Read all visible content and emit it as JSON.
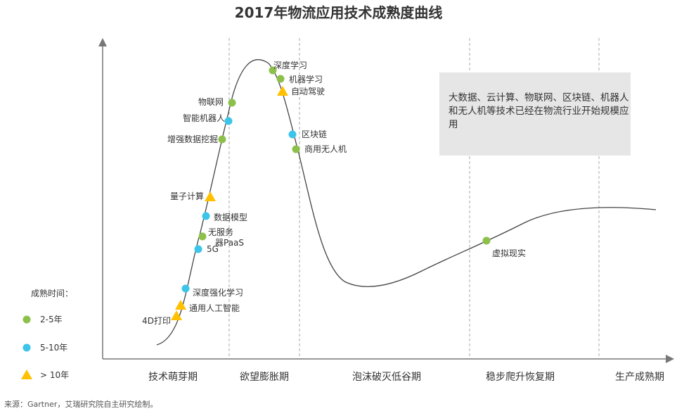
{
  "chart_data": {
    "type": "scatter",
    "title": "2017年物流应用技术成熟度曲线",
    "xlabel": "",
    "ylabel": "",
    "grid": false,
    "phases": [
      "技术萌芽期",
      "欲望膨胀期",
      "泡沫破灭低谷期",
      "稳步爬升恢复期",
      "生产成熟期"
    ],
    "legend": {
      "title": "成熟时间：",
      "placement": "left",
      "entries": [
        {
          "label": "2-5年",
          "marker": "circle",
          "color": "#8cc04b"
        },
        {
          "label": "5-10年",
          "marker": "circle",
          "color": "#3cc4ea"
        },
        {
          "label": "> 10年",
          "marker": "triangle",
          "color": "#ffc000"
        }
      ]
    },
    "points": [
      {
        "label": "深度学习",
        "group": "2-5年"
      },
      {
        "label": "机器学习",
        "group": "2-5年"
      },
      {
        "label": "自动驾驶",
        "group": "> 10年"
      },
      {
        "label": "物联网",
        "group": "2-5年"
      },
      {
        "label": "智能机器人",
        "group": "5-10年"
      },
      {
        "label": "增强数据挖掘",
        "group": "2-5年"
      },
      {
        "label": "区块链",
        "group": "5-10年"
      },
      {
        "label": "商用无人机",
        "group": "2-5年"
      },
      {
        "label": "量子计算",
        "group": "> 10年"
      },
      {
        "label": "数据模型",
        "group": "5-10年"
      },
      {
        "label": "无服务器PaaS",
        "group": "2-5年"
      },
      {
        "label": "5G",
        "group": "5-10年"
      },
      {
        "label": "深度强化学习",
        "group": "5-10年"
      },
      {
        "label": "通用人工智能",
        "group": "> 10年"
      },
      {
        "label": "4D打印",
        "group": "> 10年"
      },
      {
        "label": "虚拟现实",
        "group": "2-5年"
      }
    ],
    "annotation": "大数据、云计算、物联网、区块链、机器人和无人机等技术已经在物流行业开始规模应用"
  },
  "source": "来源：Gartner，艾瑞研究院自主研究绘制。",
  "colors": {
    "green": "#8cc04b",
    "blue": "#3cc4ea",
    "yellow": "#ffc000",
    "axis": "#777777",
    "curve": "#444444"
  }
}
